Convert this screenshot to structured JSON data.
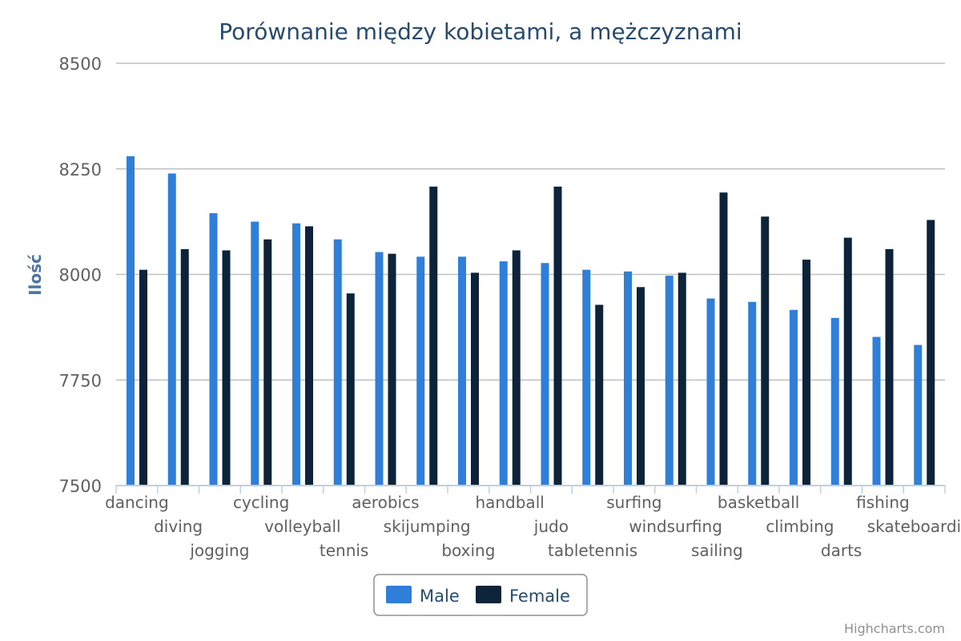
{
  "credits": "Highcharts.com",
  "chart_data": {
    "type": "bar",
    "title": "Porównanie między kobietami, a mężczyznami",
    "ylabel": "Ilość",
    "xlabel": "",
    "ylim": [
      7500,
      8500
    ],
    "yticks": [
      7500,
      7750,
      8000,
      8250,
      8500
    ],
    "grid": true,
    "legend_position": "bottom-center",
    "categories": [
      "dancing",
      "diving",
      "jogging",
      "cycling",
      "volleyball",
      "tennis",
      "aerobics",
      "skijumping",
      "boxing",
      "handball",
      "judo",
      "tabletennis",
      "surfing",
      "windsurfing",
      "sailing",
      "basketball",
      "climbing",
      "darts",
      "fishing",
      "skateboarding"
    ],
    "series": [
      {
        "name": "Male",
        "color": "#2f7ed8",
        "values": [
          8280,
          8239,
          8145,
          8125,
          8121,
          8083,
          8053,
          8042,
          8042,
          8031,
          8027,
          8011,
          8007,
          7997,
          7943,
          7935,
          7916,
          7897,
          7852,
          7833
        ]
      },
      {
        "name": "Female",
        "color": "#0d233a",
        "values": [
          8011,
          8060,
          8057,
          8083,
          8114,
          7955,
          8049,
          8208,
          8004,
          8057,
          8208,
          7928,
          7970,
          8004,
          8194,
          8137,
          8035,
          8087,
          8060,
          8129
        ]
      }
    ]
  }
}
